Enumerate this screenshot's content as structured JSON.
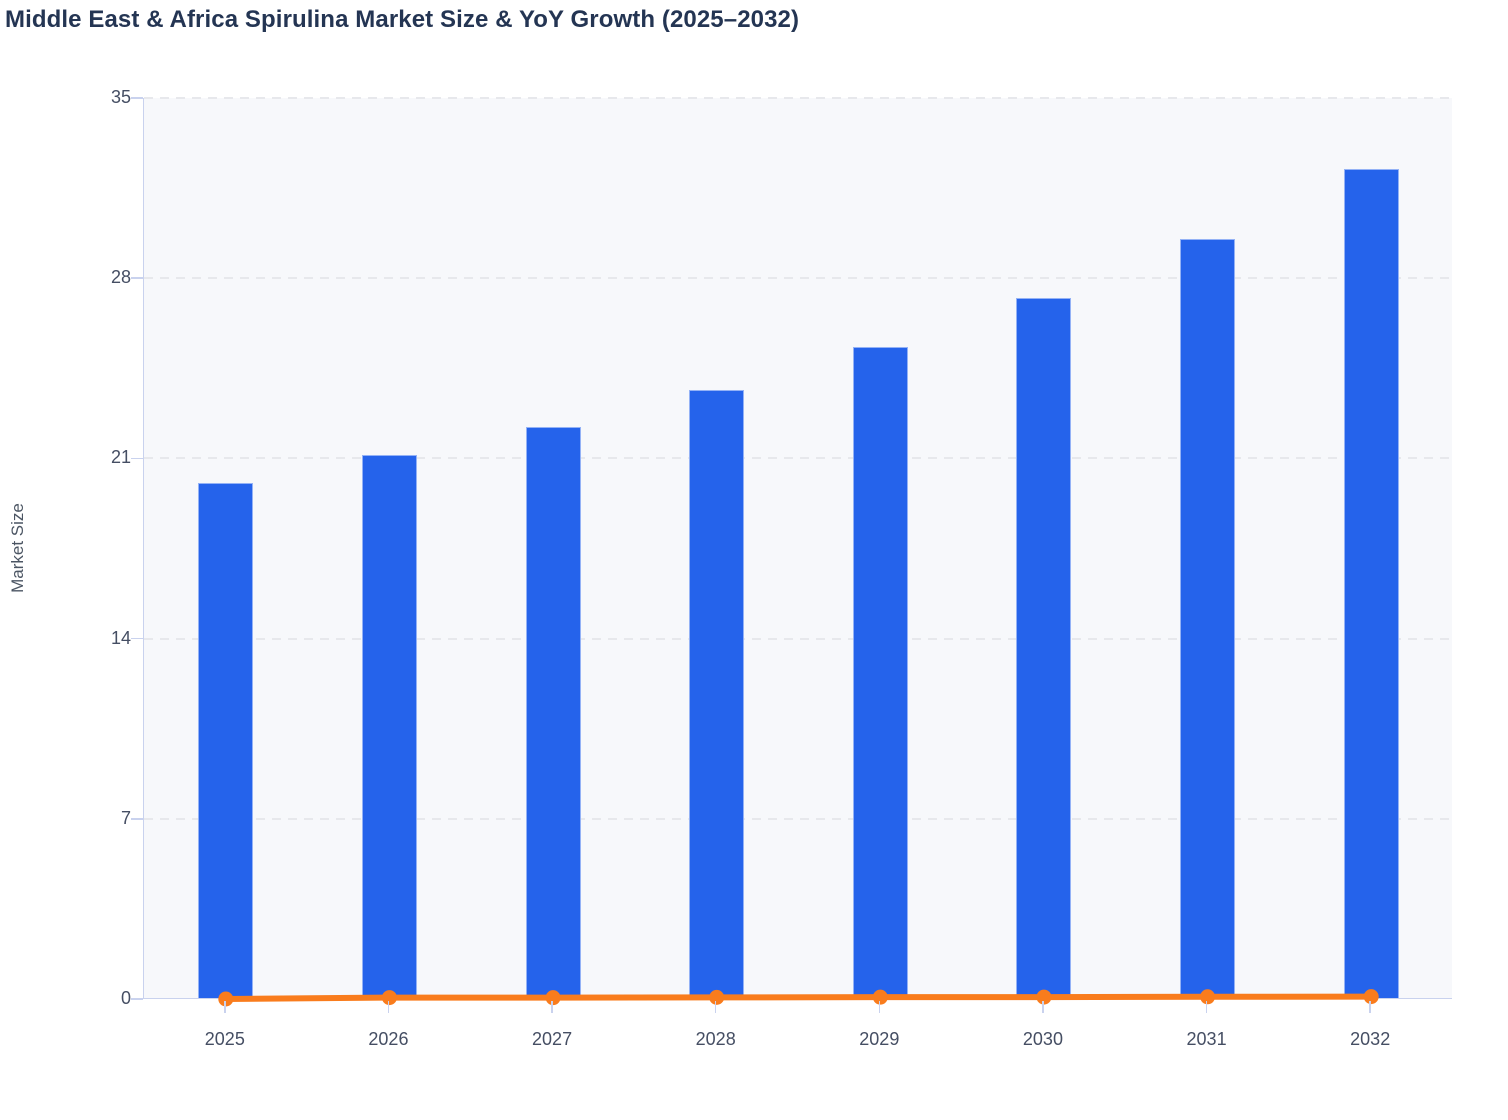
{
  "title": "Middle East & Africa Spirulina Market Size & YoY Growth (2025–2032)",
  "colors": {
    "bar_fill": "#2563eb",
    "bar_border": "#94b2f6",
    "line": "#f97c1d",
    "marker": "#f97c1d",
    "title_text": "#243553",
    "axis_text": "#454e63",
    "axis_line": "#c9d2ee",
    "grid_line": "#e7e8ec",
    "plot_bg": "#f7f8fb"
  },
  "chart_data": {
    "type": "bar",
    "title": "Middle East & Africa Spirulina Market Size & YoY Growth (2025–2032)",
    "categories": [
      "2025",
      "2026",
      "2027",
      "2028",
      "2029",
      "2030",
      "2031",
      "2032"
    ],
    "series": [
      {
        "name": "Market Size",
        "type": "bar",
        "values": [
          20.0,
          21.1,
          22.2,
          23.6,
          25.3,
          27.2,
          29.5,
          32.2
        ]
      },
      {
        "name": "YoY Growth",
        "type": "line",
        "values": [
          0,
          0.055,
          0.052,
          0.063,
          0.072,
          0.075,
          0.085,
          0.092
        ]
      }
    ],
    "xlabel": "",
    "ylabel": "Market Size",
    "ylim": [
      0,
      35
    ],
    "yticks": [
      0,
      7,
      14,
      21,
      28,
      35
    ],
    "grid": true,
    "legend_position": "none"
  }
}
